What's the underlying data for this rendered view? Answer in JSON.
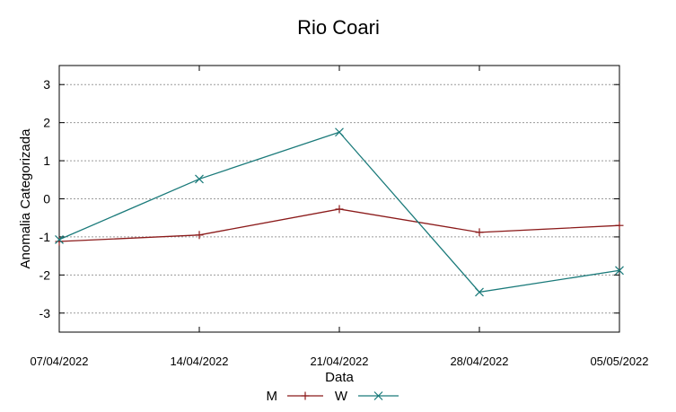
{
  "chart_data": {
    "type": "line",
    "title": "Rio Coari",
    "xlabel": "Data",
    "ylabel": "Anomalia Categorizada",
    "categories": [
      "07/04/2022",
      "14/04/2022",
      "21/04/2022",
      "28/04/2022",
      "05/05/2022"
    ],
    "yticks": [
      3,
      2,
      1,
      0,
      -1,
      -2,
      -3
    ],
    "ylim": [
      -3.5,
      3.5
    ],
    "grid": "horizontal",
    "legend_position": "bottom",
    "series": [
      {
        "name": "M",
        "values": [
          -1.12,
          -0.95,
          -0.27,
          -0.88,
          -0.7
        ],
        "color": "#8b1a1a",
        "marker": "plus"
      },
      {
        "name": "W",
        "values": [
          -1.07,
          0.52,
          1.75,
          -2.45,
          -1.88
        ],
        "color": "#1a7a7a",
        "marker": "x"
      }
    ]
  }
}
